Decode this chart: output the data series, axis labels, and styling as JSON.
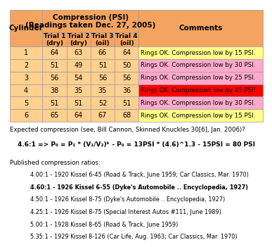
{
  "title": "Compression (PSI)",
  "subtitle": "(Readings taken Dec. 27, 2005)",
  "col_headers": [
    "Cylinder",
    "Trial 1\n(dry)",
    "Trial 2\n(dry)",
    "Trial 3\n(oil)",
    "Trial 4\n(oil)",
    "Comments"
  ],
  "cylinders": [
    1,
    2,
    3,
    4,
    5,
    6
  ],
  "trial1": [
    64,
    51,
    56,
    38,
    51,
    65
  ],
  "trial2": [
    63,
    49,
    54,
    35,
    51,
    64
  ],
  "trial3": [
    66,
    51,
    56,
    35,
    52,
    67
  ],
  "trial4": [
    64,
    50,
    56,
    36,
    51,
    68
  ],
  "comments": [
    "Rings OK. Compression low by 15 PSI.",
    "Rings OK. Compression low by 30 PSI.",
    "Rings OK. Compression low by 25 PSI.",
    "Rings OK. Compression low by 45 PSI!",
    "Rings OK. Compression low by 30 PSI.",
    "Rings OK. Compression low by 15 PSI."
  ],
  "comment_colors": [
    "#ffff88",
    "#ffaacc",
    "#ffaacc",
    "#ff0000",
    "#ffaacc",
    "#ffff88"
  ],
  "header_bg": "#f4a460",
  "row_bg": "#ffd090",
  "expected_line1": "Expected compression (see, Bill Cannon, Skinned Knuckles 30[6], Jan. 2006)?",
  "expected_line2": "4.6:1 => P₀ = P₁ * (V₁/V₂)ᵏ - P₀ = 13PSI * (4.6)^1.3 - 15PSI = 80 PSI",
  "published_header": "Published compression ratios:",
  "published_lines": [
    "4.00:1 - 1920 Kissel 6-45 (Road & Track, June 1959; Car Classics, Mar. 1970)",
    "4.60:1 - 1926 Kissel 6-55 (Dyke's Automobile .. Encyclopedia, 1927)",
    "4.50:1 - 1926 Kissel 8-75 (Dyke's Automobile .. Encyclopedia, 1927)",
    "4.25:1 - 1926 Kissel 8-75 (Special Interest Autos #111, June 1989)",
    "5.00:1 - 1928 Kissel 8-65 (Road & Track, June 1959)",
    "5.35:1 - 1929 Kissel 8-126 (Car Life, Aug. 1963; Car Classics, Mar. 1970)"
  ],
  "published_bold": [
    false,
    true,
    false,
    false,
    false,
    false
  ],
  "bg_color": "#ffffff"
}
